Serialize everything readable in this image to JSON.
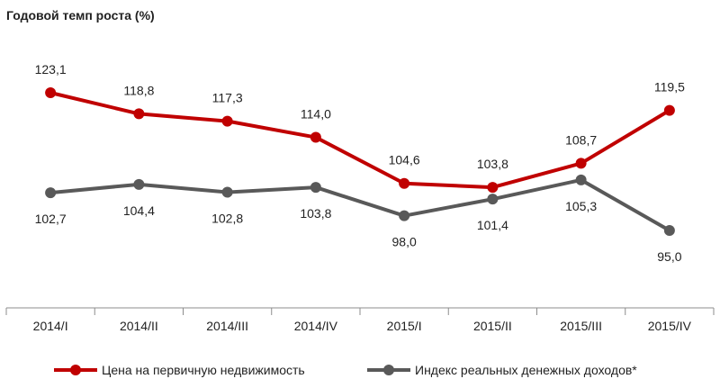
{
  "chart_data": {
    "type": "line",
    "title": "Годовой темп роста (%)",
    "categories": [
      "2014/I",
      "2014/II",
      "2014/III",
      "2014/IV",
      "2015/I",
      "2015/II",
      "2015/III",
      "2015/IV"
    ],
    "series": [
      {
        "name": "Цена на первичную недвижимость",
        "color": "#c00000",
        "values": [
          123.1,
          118.8,
          117.3,
          114.0,
          104.6,
          103.8,
          108.7,
          119.5
        ],
        "labels": [
          "123,1",
          "118,8",
          "117,3",
          "114,0",
          "104,6",
          "103,8",
          "108,7",
          "119,5"
        ],
        "label_position": "above"
      },
      {
        "name": "Индекс реальных денежных доходов*",
        "color": "#595959",
        "values": [
          102.7,
          104.4,
          102.8,
          103.8,
          98.0,
          101.4,
          105.3,
          95.0
        ],
        "labels": [
          "102,7",
          "104,4",
          "102,8",
          "103,8",
          "98,0",
          "101,4",
          "105,3",
          "95,0"
        ],
        "label_position": "below"
      }
    ],
    "ylim": [
      85,
      130
    ],
    "grid": false,
    "legend_position": "bottom"
  }
}
